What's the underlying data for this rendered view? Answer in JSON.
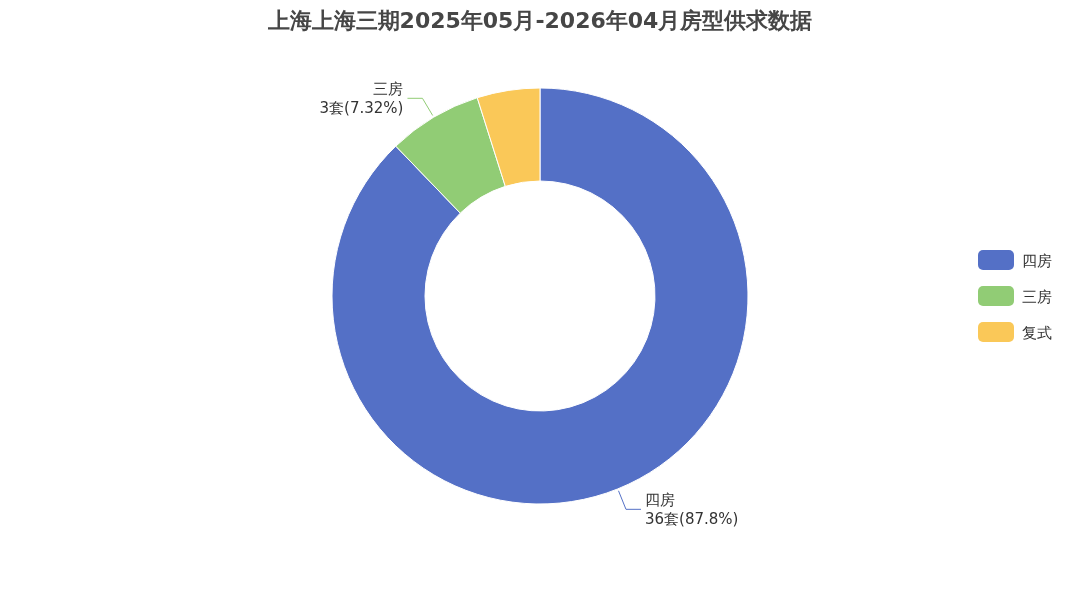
{
  "chart_data": {
    "type": "donut",
    "title": "上海上海三期2025年05月-2026年04月房型供求数据",
    "categories": [
      "四房",
      "三房",
      "复式"
    ],
    "values": [
      36,
      3,
      2
    ],
    "colors": [
      "#5470c6",
      "#91cc75",
      "#fac858"
    ],
    "value_labels": [
      "36套(87.8%)",
      "3套(7.32%)",
      null
    ],
    "legend": "right"
  }
}
